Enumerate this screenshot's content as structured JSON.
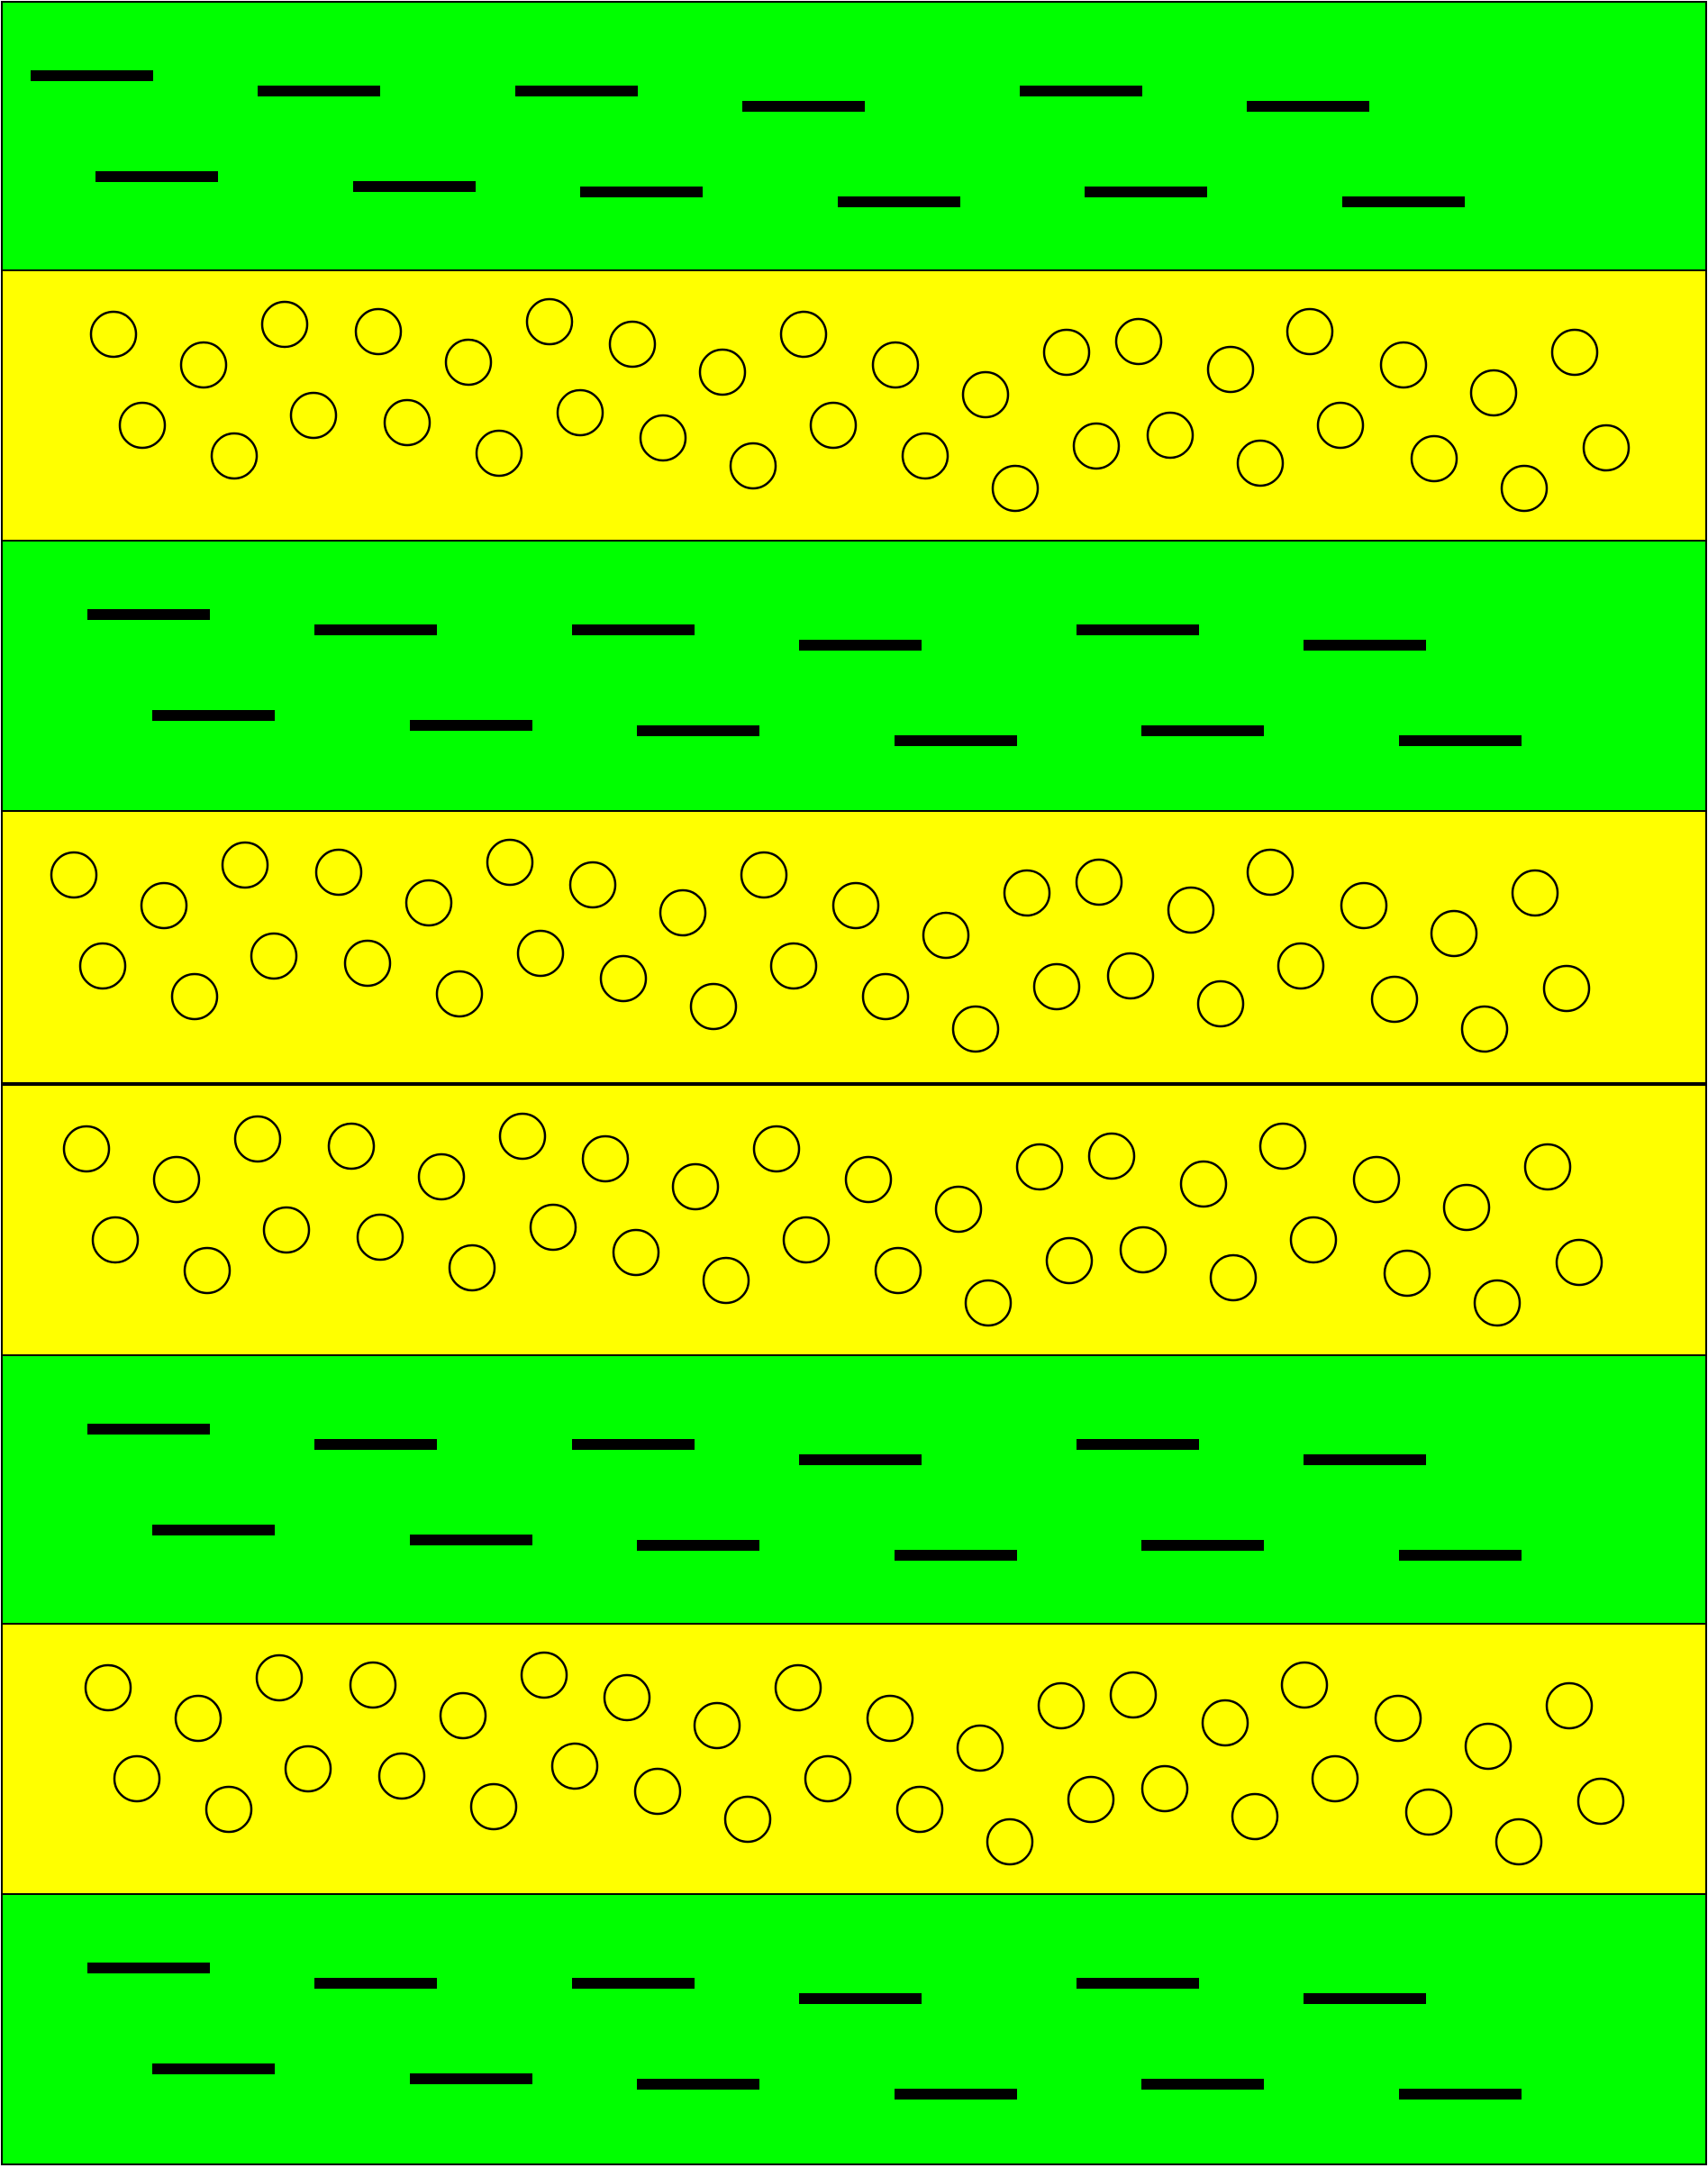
{
  "diagram": {
    "colors": {
      "green": "#00ff00",
      "yellow": "#ffff00",
      "outline": "#000000",
      "dash": "#000000",
      "circle_fill": "#ffff00"
    },
    "bands": [
      {
        "name": "band-1",
        "type": "dashes"
      },
      {
        "name": "band-2",
        "type": "circles"
      },
      {
        "name": "band-3",
        "type": "dashes"
      },
      {
        "name": "band-4",
        "type": "circles"
      },
      {
        "name": "band-5",
        "type": "circles"
      },
      {
        "name": "band-6",
        "type": "dashes"
      },
      {
        "name": "band-7",
        "type": "circles"
      },
      {
        "name": "band-8",
        "type": "dashes"
      }
    ]
  }
}
